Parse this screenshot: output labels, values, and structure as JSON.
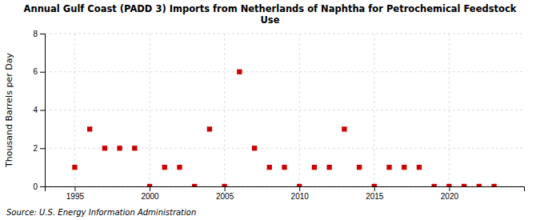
{
  "chart_data": {
    "type": "scatter",
    "title": "Annual Gulf Coast (PADD 3) Imports from Netherlands of Naphtha for Petrochemical Feedstock\nUse",
    "ylabel": "Thousand Barrels per Day",
    "source": "Source: U.S. Energy Information Administration",
    "x": [
      1995,
      1996,
      1997,
      1998,
      1999,
      2000,
      2001,
      2002,
      2003,
      2004,
      2005,
      2006,
      2007,
      2008,
      2009,
      2010,
      2011,
      2012,
      2013,
      2014,
      2015,
      2016,
      2017,
      2018,
      2019,
      2020,
      2021,
      2022,
      2023
    ],
    "values": [
      1,
      3,
      2,
      2,
      2,
      0,
      1,
      1,
      0,
      3,
      0,
      6,
      2,
      1,
      1,
      0,
      1,
      1,
      3,
      1,
      0,
      1,
      1,
      1,
      0,
      0,
      0,
      0,
      0
    ],
    "color": "#cc0000",
    "marker": "square",
    "xlim": [
      1993,
      2025
    ],
    "xticks": [
      1995,
      2000,
      2005,
      2010,
      2015,
      2020
    ],
    "ylim": [
      0,
      8
    ],
    "yticks": [
      0,
      2,
      4,
      6,
      8
    ],
    "grid": true
  }
}
